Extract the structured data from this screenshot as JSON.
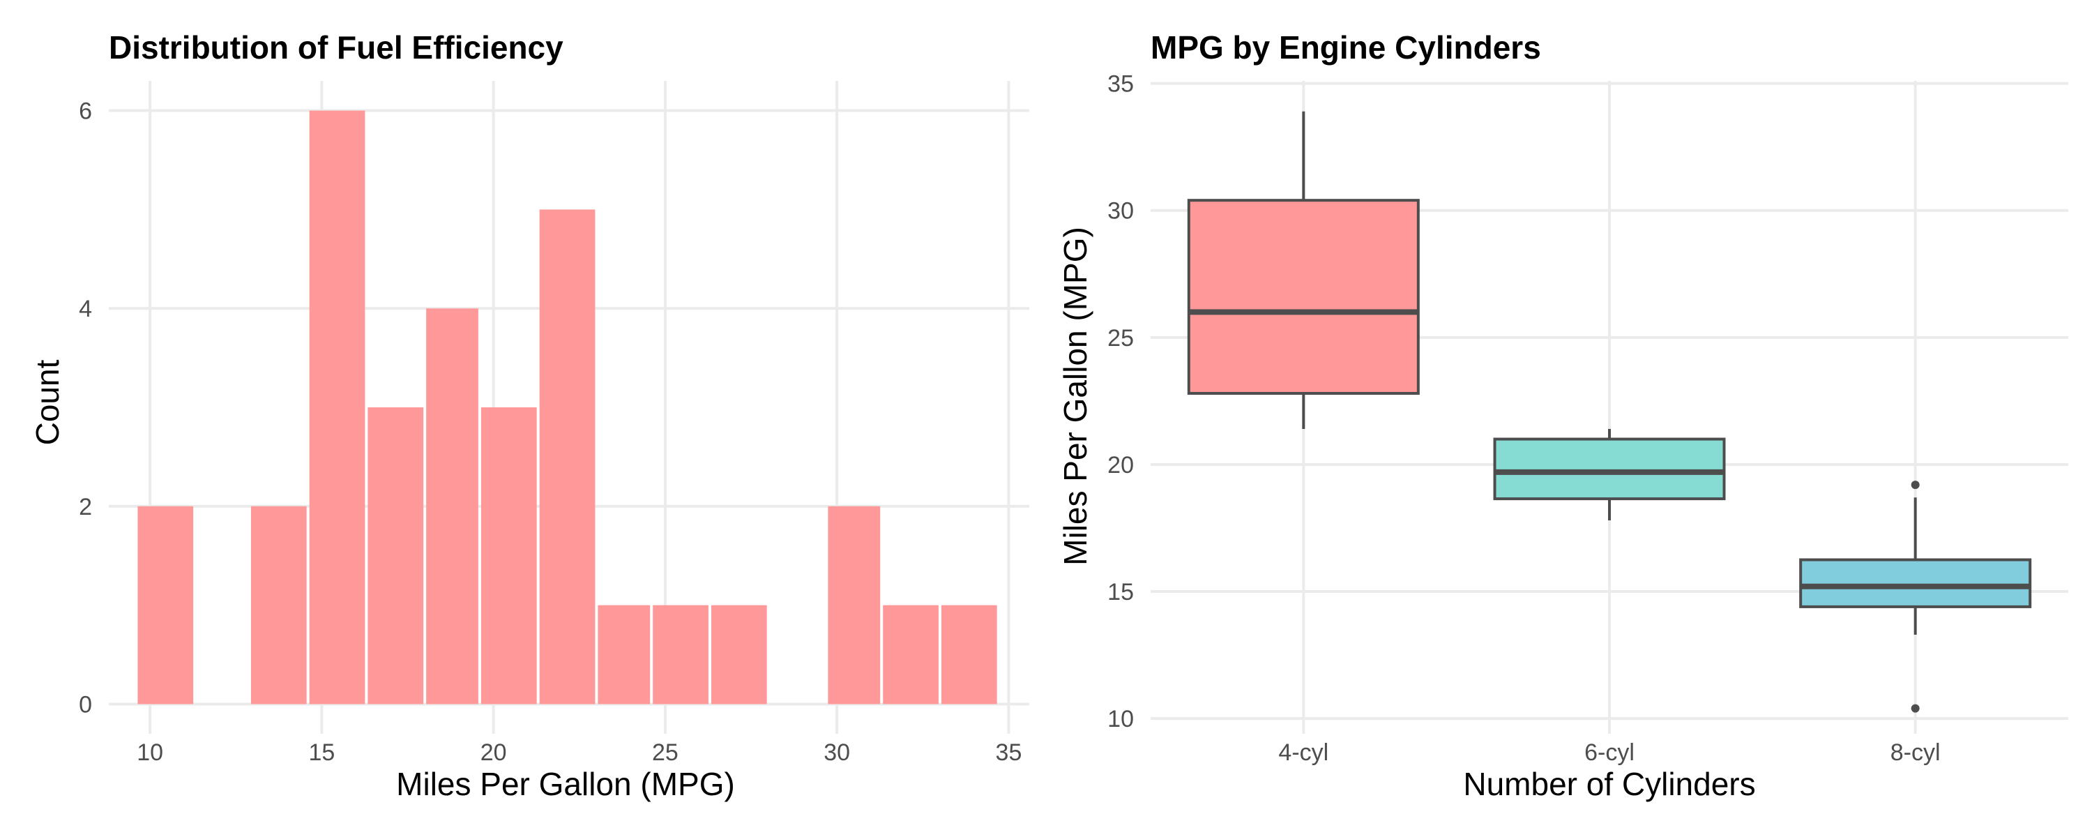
{
  "colors": {
    "histogram_fill": "#ff9999",
    "box_4cyl": "#ff9999",
    "box_6cyl": "#86dcd3",
    "box_8cyl": "#81cddd",
    "box_outline": "#4d4d4d",
    "grid": "#ebebeb"
  },
  "chart_data": [
    {
      "type": "bar",
      "subtype": "histogram",
      "title": "Distribution of Fuel Efficiency",
      "xlabel": "Miles Per Gallon (MPG)",
      "ylabel": "Count",
      "xlim": [
        8.8,
        35.6
      ],
      "ylim": [
        -0.3,
        6.3
      ],
      "xticks": [
        10,
        15,
        20,
        25,
        30,
        35
      ],
      "yticks": [
        0,
        2,
        4,
        6
      ],
      "grid": true,
      "bins": [
        {
          "x0": 9.6,
          "x1": 11.3,
          "count": 2
        },
        {
          "x0": 11.3,
          "x1": 12.9,
          "count": 0
        },
        {
          "x0": 12.9,
          "x1": 14.6,
          "count": 2
        },
        {
          "x0": 14.6,
          "x1": 16.3,
          "count": 6
        },
        {
          "x0": 16.3,
          "x1": 18.0,
          "count": 3
        },
        {
          "x0": 18.0,
          "x1": 19.6,
          "count": 4
        },
        {
          "x0": 19.6,
          "x1": 21.3,
          "count": 3
        },
        {
          "x0": 21.3,
          "x1": 23.0,
          "count": 5
        },
        {
          "x0": 23.0,
          "x1": 24.6,
          "count": 1
        },
        {
          "x0": 24.6,
          "x1": 26.3,
          "count": 1
        },
        {
          "x0": 26.3,
          "x1": 28.0,
          "count": 1
        },
        {
          "x0": 28.0,
          "x1": 29.7,
          "count": 0
        },
        {
          "x0": 29.7,
          "x1": 31.3,
          "count": 2
        },
        {
          "x0": 31.3,
          "x1": 33.0,
          "count": 1
        },
        {
          "x0": 33.0,
          "x1": 34.7,
          "count": 1
        }
      ]
    },
    {
      "type": "box",
      "title": "MPG by Engine Cylinders",
      "xlabel": "Number of Cylinders",
      "ylabel": "Miles Per Gallon (MPG)",
      "ylim": [
        9.4,
        35.1
      ],
      "yticks": [
        10,
        15,
        20,
        25,
        30,
        35
      ],
      "grid": true,
      "categories": [
        "4-cyl",
        "6-cyl",
        "8-cyl"
      ],
      "boxes": [
        {
          "category": "4-cyl",
          "whisker_low": 21.4,
          "q1": 22.8,
          "median": 26.0,
          "q3": 30.4,
          "whisker_high": 33.9,
          "outliers": []
        },
        {
          "category": "6-cyl",
          "whisker_low": 17.8,
          "q1": 18.65,
          "median": 19.7,
          "q3": 21.0,
          "whisker_high": 21.4,
          "outliers": []
        },
        {
          "category": "8-cyl",
          "whisker_low": 13.3,
          "q1": 14.4,
          "median": 15.2,
          "q3": 16.25,
          "whisker_high": 18.7,
          "outliers": [
            19.2,
            10.4
          ]
        }
      ]
    }
  ]
}
